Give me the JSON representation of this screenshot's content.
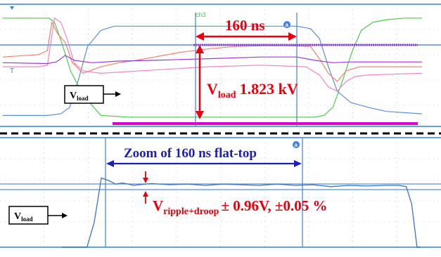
{
  "chart_data": [
    {
      "type": "line",
      "panel": "overview",
      "x_unit": "ns",
      "x_range": [
        -170,
        300
      ],
      "y_range": [
        -0.2,
        1.15
      ],
      "grid": true,
      "legend": "none",
      "series": [
        {
          "id": "vload",
          "color": "#5b8fd6",
          "x": [
            -170,
            -120,
            -105,
            -95,
            -85,
            -75,
            -60,
            -45,
            -20,
            0,
            50,
            100,
            140,
            160,
            175,
            185,
            195,
            205,
            220,
            240,
            260,
            300
          ],
          "y": [
            -0.1,
            -0.1,
            -0.08,
            0.0,
            0.35,
            0.75,
            0.95,
            1.0,
            1.0,
            1.0,
            1.0,
            1.0,
            1.0,
            1.0,
            0.97,
            0.85,
            0.5,
            0.2,
            0.06,
            0.0,
            -0.05,
            -0.08
          ]
        },
        {
          "id": "green",
          "color": "#4fc84f",
          "x": [
            -170,
            -118,
            -112,
            -104,
            -94,
            -80,
            -60,
            -30,
            0,
            60,
            120,
            160,
            180,
            190,
            200,
            210,
            222,
            232,
            245,
            260,
            280,
            300
          ],
          "y": [
            1.1,
            1.1,
            1.05,
            0.8,
            0.45,
            0.15,
            -0.1,
            -0.12,
            -0.12,
            -0.12,
            -0.12,
            -0.12,
            -0.12,
            -0.1,
            0.0,
            0.3,
            0.7,
            0.95,
            1.05,
            1.08,
            1.1,
            1.1
          ]
        },
        {
          "id": "pink",
          "color": "#f285c8",
          "x": [
            -170,
            -130,
            -120,
            -112,
            -105,
            -98,
            -90,
            -80,
            -60,
            -30,
            0,
            60,
            120,
            170,
            185,
            195,
            205,
            215,
            225,
            240,
            300
          ],
          "y": [
            0.5,
            0.5,
            0.52,
            1.1,
            1.05,
            0.85,
            0.55,
            0.45,
            0.42,
            0.44,
            0.46,
            0.5,
            0.52,
            0.5,
            0.4,
            0.25,
            0.2,
            0.32,
            0.38,
            0.4,
            0.42
          ]
        },
        {
          "id": "salmon",
          "color": "#f0806e",
          "x": [
            -170,
            -130,
            -120,
            -115,
            -108,
            -100,
            -92,
            -80,
            -60,
            -40,
            -20,
            0,
            30,
            60,
            90,
            120,
            150,
            175,
            185,
            195,
            205,
            215,
            230,
            260,
            300
          ],
          "y": [
            0.62,
            0.65,
            0.7,
            1.05,
            0.9,
            0.8,
            0.55,
            0.42,
            0.5,
            0.55,
            0.58,
            0.62,
            0.68,
            0.72,
            0.75,
            0.76,
            0.76,
            0.75,
            0.6,
            0.42,
            0.32,
            0.45,
            0.5,
            0.5,
            0.5
          ]
        },
        {
          "id": "magenta",
          "color": "#9a3ad8",
          "x": [
            -170,
            -120,
            -110,
            -100,
            -90,
            -70,
            -40,
            0,
            60,
            120,
            160,
            180,
            200,
            220,
            300
          ],
          "y": [
            0.55,
            0.54,
            0.56,
            0.64,
            0.58,
            0.55,
            0.57,
            0.58,
            0.6,
            0.62,
            0.62,
            0.58,
            0.55,
            0.56,
            0.56
          ]
        }
      ]
    },
    {
      "type": "line",
      "panel": "zoom",
      "x_unit": "ns",
      "x_range": [
        -20,
        180
      ],
      "grid": true,
      "legend": "none",
      "series": [
        {
          "id": "vload_zoom",
          "color": "#3b73c7",
          "x": [
            -20,
            -6,
            -2,
            2,
            6,
            10,
            14,
            20,
            30,
            40,
            50,
            60,
            70,
            80,
            90,
            100,
            110,
            120,
            130,
            140,
            150,
            160,
            168,
            172,
            175,
            178,
            180
          ],
          "y": [
            -1,
            -1,
            0.4,
            1.12,
            1.08,
            1.02,
            1.04,
            1.0,
            1.03,
            1.01,
            1.02,
            1.0,
            1.02,
            1.01,
            1.0,
            1.02,
            1.0,
            1.01,
            0.98,
            1.0,
            0.99,
            1.0,
            1.0,
            0.98,
            0.7,
            0.0,
            -1
          ]
        }
      ]
    }
  ],
  "annotations": {
    "pulse_width": "160 ns",
    "vload_label": "V",
    "vload_sub": "load",
    "vload_value": "1.823 kV",
    "zoom_title": "Zoom of 160 ns flat-top",
    "ripple_v": "V",
    "ripple_sub": "ripple+droop",
    "ripple_value": "± 0.96V, ±0.05 %",
    "cursor_tag": "a",
    "ch_tag": "ch3"
  },
  "colors": {
    "red": "#e8000b",
    "blue_text": "#1f1fb8",
    "magenta_bar": "#e000c8",
    "cursor": "#3d7ee0"
  }
}
